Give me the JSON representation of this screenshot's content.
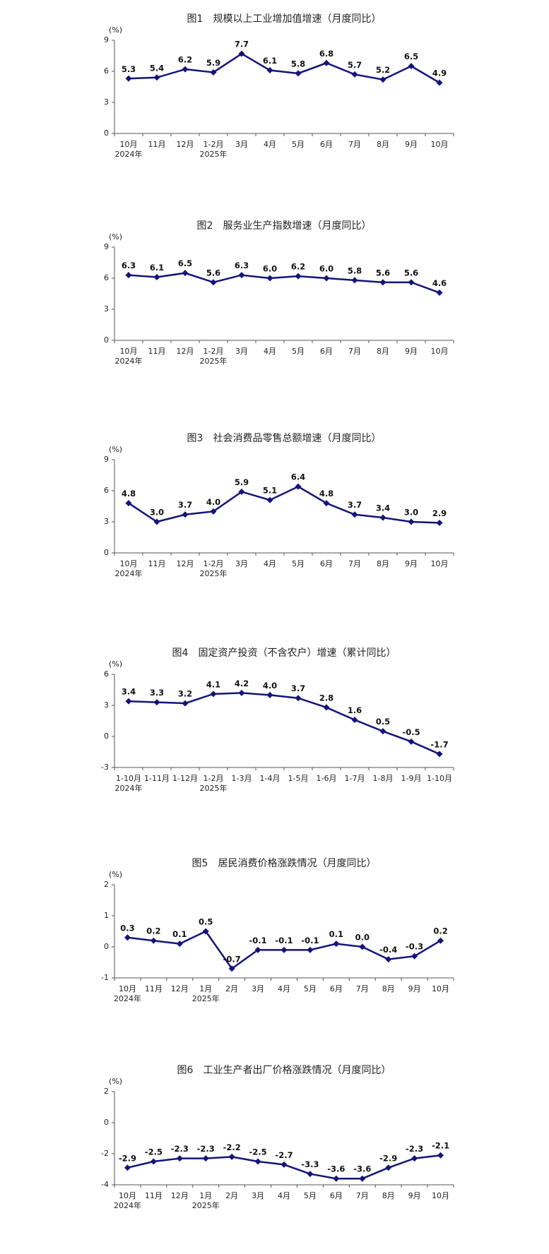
{
  "chart_data": [
    {
      "type": "line",
      "title": "图1　规模以上工业增加值增速（月度同比）",
      "unit": "(%)",
      "categories": [
        "10月",
        "11月",
        "12月",
        "1-2月",
        "3月",
        "4月",
        "5月",
        "6月",
        "7月",
        "8月",
        "9月",
        "10月"
      ],
      "sub_labels": [
        "2024年",
        null,
        null,
        "2025年",
        null,
        null,
        null,
        null,
        null,
        null,
        null,
        null
      ],
      "values": [
        5.3,
        5.4,
        6.2,
        5.9,
        7.7,
        6.1,
        5.8,
        6.8,
        5.7,
        5.2,
        6.5,
        4.9
      ],
      "value_labels": [
        "5.3",
        "5.4",
        "6.2",
        "5.9",
        "7.7",
        "6.1",
        "5.8",
        "6.8",
        "5.7",
        "5.2",
        "6.5",
        "4.9"
      ],
      "color": "#14147a",
      "ylim": [
        0,
        9
      ],
      "yticks": [
        0,
        3,
        6,
        9
      ]
    },
    {
      "type": "line",
      "title": "图2　服务业生产指数增速（月度同比）",
      "unit": "(%)",
      "categories": [
        "10月",
        "11月",
        "12月",
        "1-2月",
        "3月",
        "4月",
        "5月",
        "6月",
        "7月",
        "8月",
        "9月",
        "10月"
      ],
      "sub_labels": [
        "2024年",
        null,
        null,
        "2025年",
        null,
        null,
        null,
        null,
        null,
        null,
        null,
        null
      ],
      "values": [
        6.3,
        6.1,
        6.5,
        5.6,
        6.3,
        6.0,
        6.2,
        6.0,
        5.8,
        5.6,
        5.6,
        4.6
      ],
      "value_labels": [
        "6.3",
        "6.1",
        "6.5",
        "5.6",
        "6.3",
        "6.0",
        "6.2",
        "6.0",
        "5.8",
        "5.6",
        "5.6",
        "4.6"
      ],
      "color": "#14147a",
      "ylim": [
        0,
        9
      ],
      "yticks": [
        0,
        3,
        6,
        9
      ]
    },
    {
      "type": "line",
      "title": "图3　社会消费品零售总额增速（月度同比）",
      "unit": "(%)",
      "categories": [
        "10月",
        "11月",
        "12月",
        "1-2月",
        "3月",
        "4月",
        "5月",
        "6月",
        "7月",
        "8月",
        "9月",
        "10月"
      ],
      "sub_labels": [
        "2024年",
        null,
        null,
        "2025年",
        null,
        null,
        null,
        null,
        null,
        null,
        null,
        null
      ],
      "values": [
        4.8,
        3.0,
        3.7,
        4.0,
        5.9,
        5.1,
        6.4,
        4.8,
        3.7,
        3.4,
        3.0,
        2.9
      ],
      "value_labels": [
        "4.8",
        "3.0",
        "3.7",
        "4.0",
        "5.9",
        "5.1",
        "6.4",
        "4.8",
        "3.7",
        "3.4",
        "3.0",
        "2.9"
      ],
      "color": "#14147a",
      "ylim": [
        0,
        9
      ],
      "yticks": [
        0,
        3,
        6,
        9
      ]
    },
    {
      "type": "line",
      "title": "图4　固定资产投资（不含农户）增速（累计同比）",
      "unit": "(%)",
      "categories": [
        "1-10月",
        "1-11月",
        "1-12月",
        "1-2月",
        "1-3月",
        "1-4月",
        "1-5月",
        "1-6月",
        "1-7月",
        "1-8月",
        "1-9月",
        "1-10月"
      ],
      "sub_labels": [
        "2024年",
        null,
        null,
        "2025年",
        null,
        null,
        null,
        null,
        null,
        null,
        null,
        null
      ],
      "values": [
        3.4,
        3.3,
        3.2,
        4.1,
        4.2,
        4.0,
        3.7,
        2.8,
        1.6,
        0.5,
        -0.5,
        -1.7
      ],
      "value_labels": [
        "3.4",
        "3.3",
        "3.2",
        "4.1",
        "4.2",
        "4.0",
        "3.7",
        "2.8",
        "1.6",
        "0.5",
        "-0.5",
        "-1.7"
      ],
      "color": "#14147a",
      "ylim": [
        -3,
        6
      ],
      "yticks": [
        -3,
        0,
        3,
        6
      ]
    },
    {
      "type": "line",
      "title": "图5　居民消费价格涨跌情况（月度同比）",
      "unit": "(%)",
      "categories": [
        "10月",
        "11月",
        "12月",
        "1月",
        "2月",
        "3月",
        "4月",
        "5月",
        "6月",
        "7月",
        "8月",
        "9月",
        "10月"
      ],
      "sub_labels": [
        "2024年",
        null,
        null,
        "2025年",
        null,
        null,
        null,
        null,
        null,
        null,
        null,
        null,
        null
      ],
      "values": [
        0.3,
        0.2,
        0.1,
        0.5,
        -0.7,
        -0.1,
        -0.1,
        -0.1,
        0.1,
        0.0,
        -0.4,
        -0.3,
        0.2
      ],
      "value_labels": [
        "0.3",
        "0.2",
        "0.1",
        "0.5",
        "-0.7",
        "-0.1",
        "-0.1",
        "-0.1",
        "0.1",
        "0.0",
        "-0.4",
        "-0.3",
        "0.2"
      ],
      "color": "#14147a",
      "ylim": [
        -1,
        2
      ],
      "yticks": [
        -1,
        0,
        1,
        2
      ]
    },
    {
      "type": "line",
      "title": "图6　工业生产者出厂价格涨跌情况（月度同比）",
      "unit": "(%)",
      "categories": [
        "10月",
        "11月",
        "12月",
        "1月",
        "2月",
        "3月",
        "4月",
        "5月",
        "6月",
        "7月",
        "8月",
        "9月",
        "10月"
      ],
      "sub_labels": [
        "2024年",
        null,
        null,
        "2025年",
        null,
        null,
        null,
        null,
        null,
        null,
        null,
        null,
        null
      ],
      "values": [
        -2.9,
        -2.5,
        -2.3,
        -2.3,
        -2.2,
        -2.5,
        -2.7,
        -3.3,
        -3.6,
        -3.6,
        -2.9,
        -2.3,
        -2.1
      ],
      "value_labels": [
        "-2.9",
        "-2.5",
        "-2.3",
        "-2.3",
        "-2.2",
        "-2.5",
        "-2.7",
        "-3.3",
        "-3.6",
        "-3.6",
        "-2.9",
        "-2.3",
        "-2.1"
      ],
      "color": "#14147a",
      "ylim": [
        -4,
        2
      ],
      "yticks": [
        -4,
        -2,
        0,
        2
      ]
    }
  ]
}
